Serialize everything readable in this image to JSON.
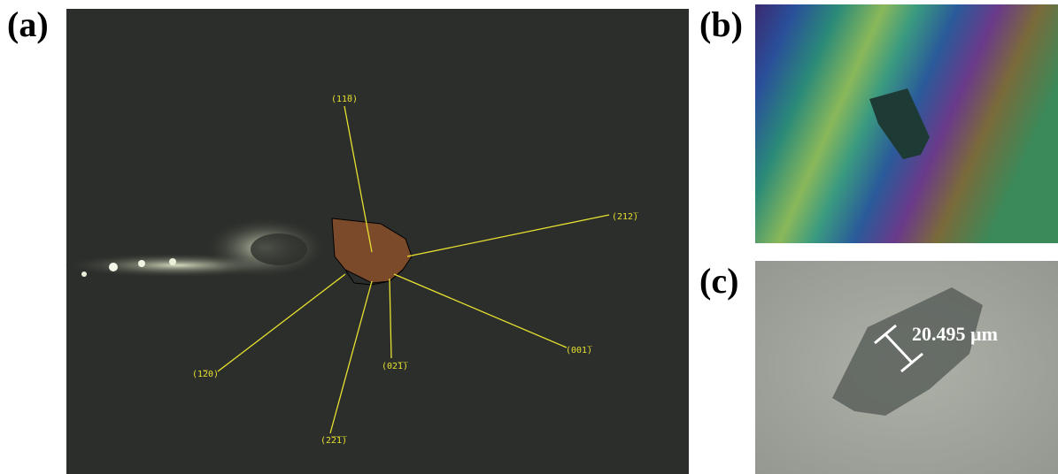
{
  "panels": [
    {
      "label": "(a)",
      "facets": [
        "(11̅0)",
        "(212̅)",
        "(001̅)",
        "(02̅1̅)",
        "(2̅2̅1̅)",
        "(1̅20)"
      ]
    },
    {
      "label": "(b)"
    },
    {
      "label": "(c)",
      "scale_bar": "20.495 µm"
    }
  ]
}
